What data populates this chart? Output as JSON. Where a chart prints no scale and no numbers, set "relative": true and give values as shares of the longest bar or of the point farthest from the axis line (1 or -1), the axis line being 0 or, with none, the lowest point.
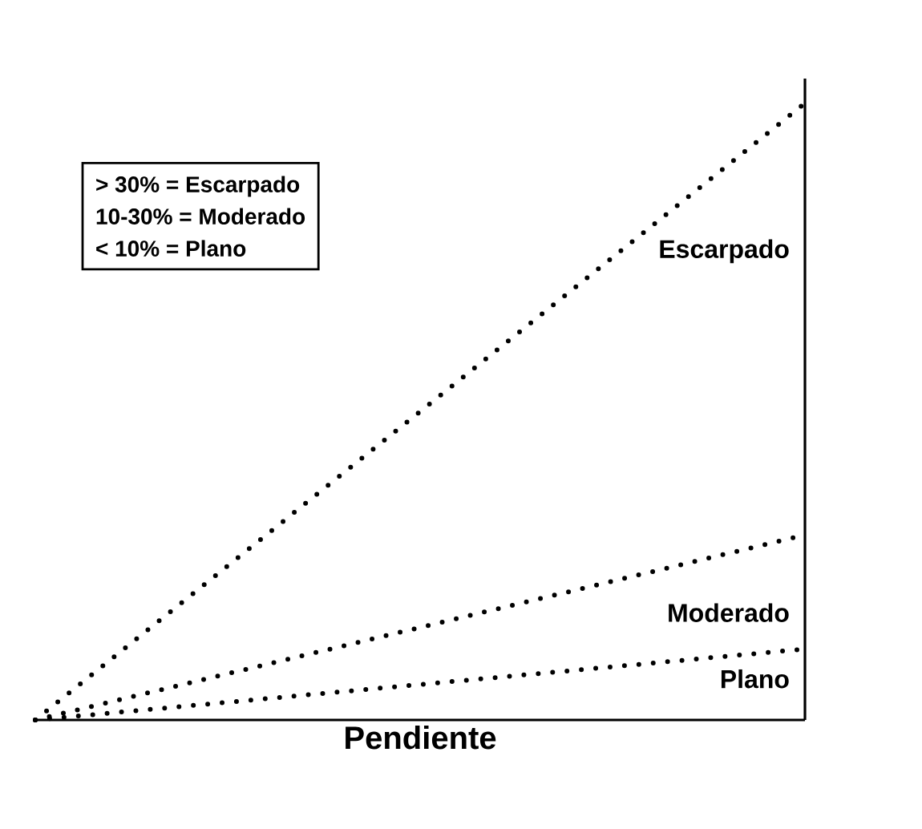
{
  "chart_data": {
    "type": "line",
    "relative": true,
    "xlabel": "Pendiente",
    "categories": [
      null,
      null
    ],
    "series": [
      {
        "name": "Escarpado",
        "color": "#000000",
        "values": [
          0,
          1
        ]
      },
      {
        "name": "Moderado",
        "color": "#000000",
        "values": [
          0,
          0.3
        ]
      },
      {
        "name": "Plano",
        "color": "#000000",
        "values": [
          0,
          0.115
        ]
      }
    ],
    "line_style": "dotted",
    "marker": "none",
    "annotations": [
      "> 30% = Escarpado",
      "10-30% = Moderado",
      "< 10% = Plano"
    ]
  }
}
